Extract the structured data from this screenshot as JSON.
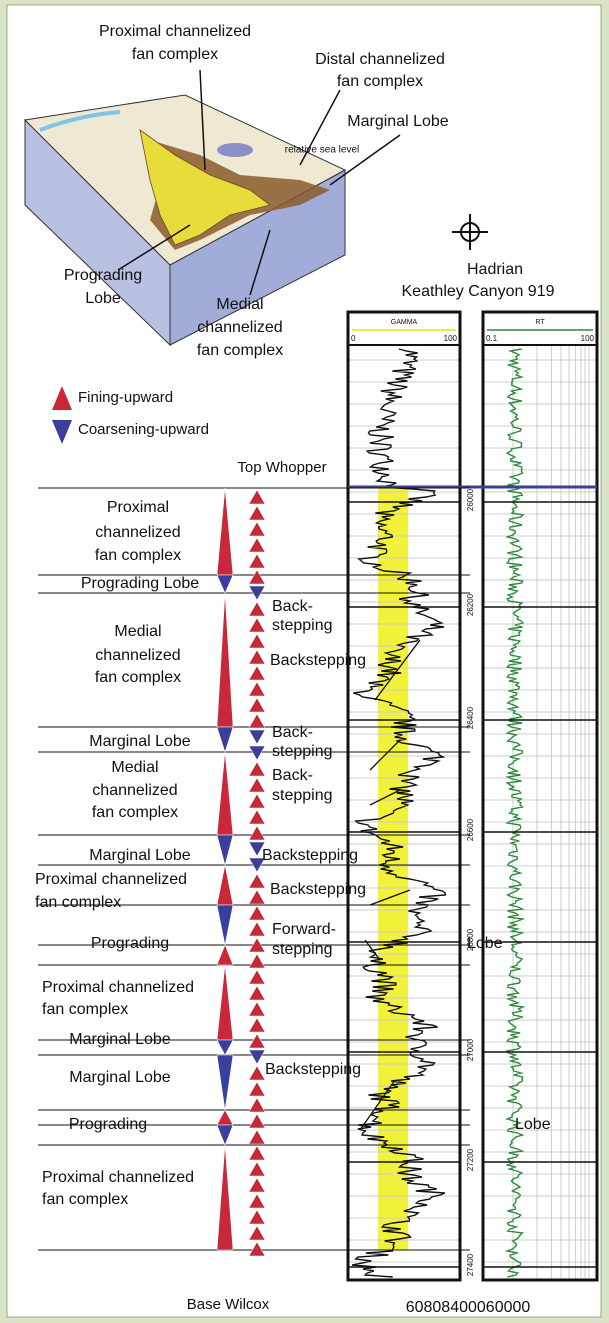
{
  "block_labels": [
    [
      "Proximal channelized",
      "fan complex"
    ],
    [
      "Distal channelized",
      "fan complex"
    ],
    [
      "Marginal Lobe"
    ],
    [
      "relative sea level"
    ],
    [
      "Prograding",
      "Lobe"
    ],
    [
      "Medial",
      "channelized",
      "fan complex"
    ]
  ],
  "well": {
    "name": "Hadrian",
    "location": "Keathley Canyon 919"
  },
  "legend": [
    "Fining-upward",
    "Coarsening-upward"
  ],
  "tops": {
    "top": "Top Whopper",
    "base": "Base Wilcox"
  },
  "tracks": [
    {
      "name": "GAMMA",
      "min": 0,
      "max": 100
    },
    {
      "name": "RT",
      "min": 0.1,
      "max": 100
    }
  ],
  "depths": [
    26000,
    26200,
    26400,
    26600,
    26800,
    27000,
    27200,
    27400
  ],
  "intervals": [
    [
      "Proximal",
      "channelized",
      "fan complex"
    ],
    [
      "Prograding Lobe"
    ],
    [
      "Medial",
      "channelized",
      "fan complex"
    ],
    [
      "Marginal Lobe"
    ],
    [
      "Medial",
      "channelized",
      "fan complex"
    ],
    [
      "Marginal Lobe"
    ],
    [
      "Proximal channelized",
      "fan complex"
    ],
    [
      "Prograding"
    ],
    [
      "Proximal channelized",
      "fan complex"
    ],
    [
      "Marginal Lobe"
    ],
    [
      "Marginal Lobe"
    ],
    [
      "Prograding"
    ],
    [
      "Proximal channelized",
      "fan complex"
    ]
  ],
  "annotations": [
    [
      "Back-",
      "stepping"
    ],
    [
      "Backstepping"
    ],
    [
      "Back-",
      "stepping"
    ],
    [
      "Back-",
      "stepping"
    ],
    [
      "Backstepping"
    ],
    [
      "Backstepping"
    ],
    [
      "Forward-",
      "stepping"
    ],
    [
      "Backstepping"
    ],
    [
      "Lobe"
    ],
    [
      "Lobe"
    ]
  ],
  "footer": "60808400060000"
}
